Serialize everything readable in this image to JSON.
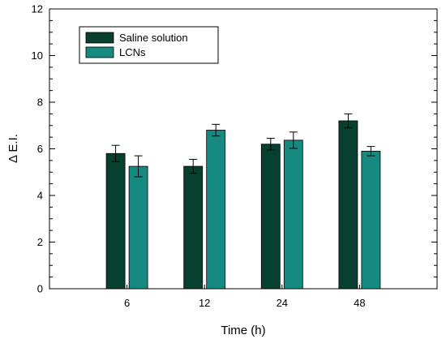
{
  "chart_data": {
    "type": "bar",
    "xlabel": "Time (h)",
    "ylabel": "Δ E.I.",
    "ylim": [
      0,
      12
    ],
    "yticks": [
      0,
      2,
      4,
      6,
      8,
      10,
      12
    ],
    "categories": [
      "6",
      "12",
      "24",
      "48"
    ],
    "legend_position": "top-left",
    "grid": false,
    "series": [
      {
        "name": "Saline solution",
        "color": "#07402e",
        "values": [
          5.8,
          5.25,
          6.2,
          7.2
        ],
        "errors": [
          0.35,
          0.3,
          0.25,
          0.3
        ]
      },
      {
        "name": "LCNs",
        "color": "#168a80",
        "values": [
          5.25,
          6.8,
          6.37,
          5.9
        ],
        "errors": [
          0.45,
          0.25,
          0.35,
          0.2
        ]
      }
    ]
  }
}
